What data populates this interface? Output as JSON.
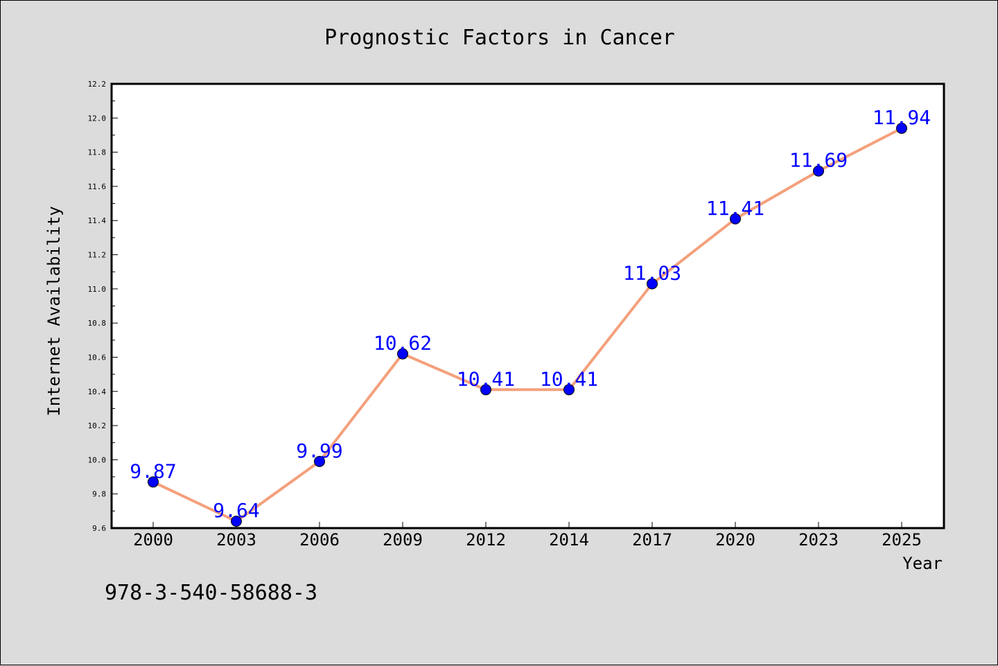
{
  "colors": {
    "background": "#dcdcdc",
    "plot_background": "#ffffff",
    "line": "#f4a07c",
    "marker": "#0000ff",
    "data_label": "#0000ff"
  },
  "footer_text": "978-3-540-58688-3",
  "chart_data": {
    "type": "line",
    "title": "Prognostic Factors in Cancer",
    "xlabel": "Year",
    "ylabel": "Internet Availability",
    "categories": [
      "2000",
      "2003",
      "2006",
      "2009",
      "2012",
      "2014",
      "2017",
      "2020",
      "2023",
      "2025"
    ],
    "series": [
      {
        "values": [
          9.87,
          9.64,
          9.99,
          10.62,
          10.41,
          10.41,
          11.03,
          11.41,
          11.69,
          11.94
        ],
        "labels": [
          "9.87",
          "9.64",
          "9.99",
          "10.62",
          "10.41",
          "10.41",
          "11.03",
          "11.41",
          "11.69",
          "11.94"
        ]
      }
    ],
    "ylim": [
      9.6,
      12.2
    ],
    "yticks": [
      "9.6",
      "9.8",
      "10.0",
      "10.2",
      "10.4",
      "10.6",
      "10.8",
      "11.0",
      "11.2",
      "11.4",
      "11.6",
      "11.8",
      "12.0",
      "12.2"
    ],
    "grid": false,
    "markers": true,
    "data_labels": true
  }
}
